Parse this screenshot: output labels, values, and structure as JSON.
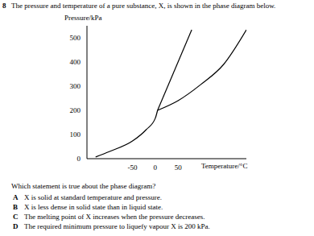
{
  "number": "8",
  "intro": "The pressure and temperature of a pure substance, X, is shown in the phase diagram below.",
  "chart_data": {
    "type": "line",
    "y_label": "Pressure/kPa",
    "x_label": "Temperature/°C",
    "xlim": [
      -150,
      200
    ],
    "xticks": [
      -50,
      0,
      50
    ],
    "ylim": [
      0,
      550
    ],
    "yticks": [
      0,
      100,
      200,
      300,
      400,
      500
    ],
    "series": [
      {
        "color": "#000000",
        "x": [
          -131,
          -100,
          -50,
          -20,
          0,
          5
        ],
        "values": [
          7,
          30,
          73,
          120,
          167,
          200
        ]
      },
      {
        "color": "#000000",
        "x": [
          5,
          80
        ],
        "values": [
          200,
          533
        ]
      },
      {
        "color": "#000000",
        "x": [
          5,
          50,
          100,
          150,
          200
        ],
        "values": [
          200,
          240,
          307,
          390,
          533
        ]
      }
    ]
  },
  "question": "Which statement is true about the phase diagram?",
  "options": [
    {
      "letter": "A",
      "text": "X is solid at standard temperature and pressure."
    },
    {
      "letter": "B",
      "text": "X is less dense in solid state than in liquid state."
    },
    {
      "letter": "C",
      "text": "The melting point of X increases when the pressure decreases."
    },
    {
      "letter": "D",
      "text": "The required minimum pressure to liquefy vapour X is 200 kPa."
    }
  ]
}
